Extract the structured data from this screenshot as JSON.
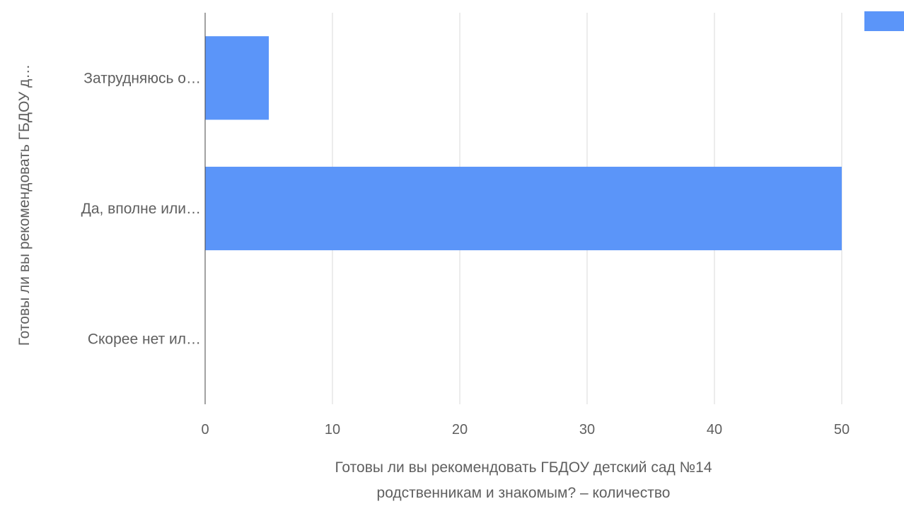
{
  "chart_data": {
    "type": "bar",
    "orientation": "horizontal",
    "categories": [
      "Затрудняюсь о…",
      "Да, вполне или…",
      "Скорее нет ил…"
    ],
    "series": [
      {
        "values": [
          5,
          50,
          0
        ],
        "color": "#5b95f9"
      }
    ],
    "xlabel_lines": [
      "Готовы ли вы рекомендовать ГБДОУ детский сад №14",
      "родственникам и знакомым? – количество"
    ],
    "ylabel": "Готовы ли вы рекомендовать ГБДОУ д…",
    "xticks": [
      0,
      10,
      20,
      30,
      40,
      50
    ],
    "xlim": [
      0,
      50
    ],
    "grid": true,
    "legend": {
      "position": "top-right"
    }
  }
}
